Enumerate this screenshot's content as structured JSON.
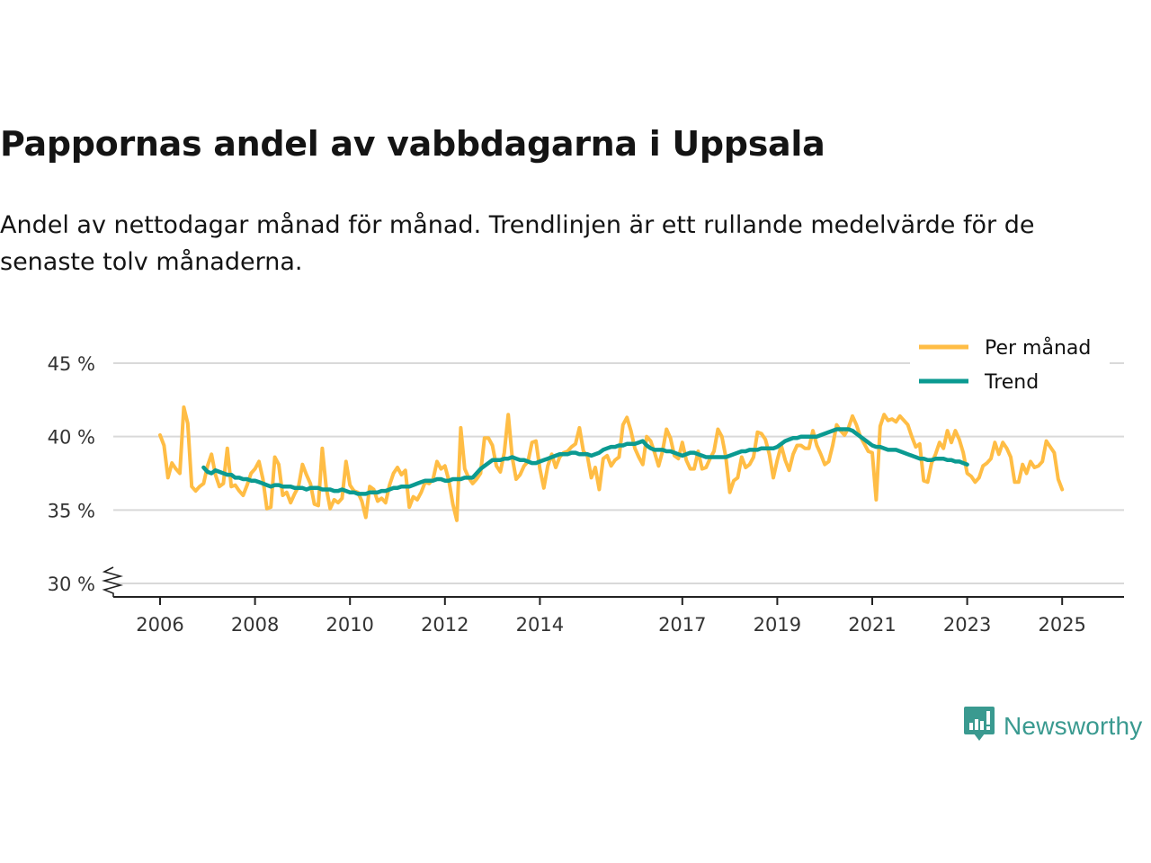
{
  "header": {
    "title": "Pappornas andel av vabbdagarna i Uppsala",
    "subtitle": "Andel av nettodagar månad för månad. Trendlinjen är ett rullande medelvärde för de senaste tolv månaderna."
  },
  "brand": {
    "name": "Newsworthy",
    "icon": "bar-chart-speech-bubble-icon",
    "color": "#3a9a90"
  },
  "chart_data": {
    "type": "line",
    "title": "Pappornas andel av vabbdagarna i Uppsala",
    "subtitle": "Andel av nettodagar månad för månad. Trendlinjen är ett rullande medelvärde för de senaste tolv månaderna.",
    "xlabel": "",
    "ylabel": "",
    "ylim": [
      30,
      45
    ],
    "y_axis_break": true,
    "yticks": [
      30,
      35,
      40,
      45
    ],
    "ytick_labels": [
      "30 %",
      "35 %",
      "40 %",
      "45 %"
    ],
    "xticks": [
      2006,
      2008,
      2010,
      2012,
      2014,
      2017,
      2019,
      2021,
      2023,
      2025
    ],
    "xtick_labels": [
      "2006",
      "2008",
      "2010",
      "2012",
      "2014",
      "2017",
      "2019",
      "2021",
      "2023",
      "2025"
    ],
    "x_start": "2006-01",
    "x_unit": "month",
    "grid": true,
    "legend_position": "top-right",
    "series": [
      {
        "name": "Per månad",
        "color": "#ffbd45",
        "start": "2006-01",
        "values": [
          40.1,
          39.4,
          37.2,
          38.2,
          37.8,
          37.5,
          42.0,
          40.9,
          36.6,
          36.3,
          36.6,
          36.8,
          38.0,
          38.8,
          37.4,
          36.6,
          36.8,
          39.2,
          36.6,
          36.7,
          36.3,
          36.0,
          36.7,
          37.5,
          37.8,
          38.3,
          37.1,
          35.1,
          35.2,
          38.6,
          38.1,
          36.0,
          36.2,
          35.5,
          36.1,
          36.6,
          38.1,
          37.4,
          36.8,
          35.4,
          35.3,
          39.2,
          36.5,
          35.1,
          35.7,
          35.5,
          35.8,
          38.3,
          36.7,
          36.3,
          36.2,
          35.6,
          34.5,
          36.6,
          36.4,
          35.6,
          35.8,
          35.5,
          36.7,
          37.5,
          37.9,
          37.4,
          37.7,
          35.2,
          35.9,
          35.7,
          36.2,
          36.9,
          36.8,
          37.1,
          38.3,
          37.8,
          38.0,
          37.0,
          35.4,
          34.3,
          40.6,
          37.8,
          37.2,
          36.8,
          37.1,
          37.5,
          39.9,
          39.9,
          39.4,
          38.0,
          37.6,
          38.9,
          41.5,
          38.6,
          37.1,
          37.4,
          38.0,
          38.3,
          39.6,
          39.7,
          37.8,
          36.5,
          38.0,
          38.8,
          37.9,
          38.6,
          38.9,
          39.0,
          39.3,
          39.5,
          40.6,
          39.0,
          38.7,
          37.2,
          37.9,
          36.4,
          38.5,
          38.7,
          38.0,
          38.4,
          38.6,
          40.8,
          41.3,
          40.4,
          39.2,
          38.6,
          38.1,
          40.0,
          39.7,
          38.9,
          38.0,
          39.0,
          40.5,
          39.9,
          38.7,
          38.5,
          39.6,
          38.4,
          37.8,
          37.8,
          39.0,
          37.8,
          37.9,
          38.5,
          39.0,
          40.5,
          40.0,
          38.6,
          36.2,
          37.0,
          37.2,
          38.6,
          37.9,
          38.1,
          38.6,
          40.3,
          40.2,
          39.8,
          38.8,
          37.2,
          38.4,
          39.4,
          38.4,
          37.7,
          38.8,
          39.4,
          39.4,
          39.2,
          39.2,
          40.4,
          39.4,
          38.8,
          38.1,
          38.3,
          39.4,
          40.8,
          40.4,
          40.1,
          40.6,
          41.4,
          40.8,
          40.0,
          39.5,
          39.0,
          38.9,
          35.7,
          40.7,
          41.5,
          41.1,
          41.2,
          41.0,
          41.4,
          41.1,
          40.8,
          40.0,
          39.3,
          39.5,
          37.0,
          36.9,
          38.2,
          38.8,
          39.6,
          39.2,
          40.4,
          39.6,
          40.4,
          39.8,
          38.9,
          37.5,
          37.3,
          36.9,
          37.2,
          38.0,
          38.2,
          38.5,
          39.6,
          38.8,
          39.6,
          39.2,
          38.6,
          36.9,
          36.9,
          38.1,
          37.5,
          38.3,
          37.9,
          38.0,
          38.3,
          39.7,
          39.3,
          38.9,
          37.1,
          36.4
        ]
      },
      {
        "name": "Trend",
        "color": "#0b9a91",
        "start": "2006-12",
        "values": [
          37.9,
          37.6,
          37.5,
          37.7,
          37.6,
          37.5,
          37.4,
          37.4,
          37.2,
          37.2,
          37.1,
          37.1,
          37.0,
          37.0,
          36.9,
          36.8,
          36.7,
          36.6,
          36.7,
          36.7,
          36.6,
          36.6,
          36.6,
          36.5,
          36.5,
          36.5,
          36.4,
          36.5,
          36.5,
          36.5,
          36.4,
          36.4,
          36.4,
          36.3,
          36.3,
          36.4,
          36.3,
          36.2,
          36.2,
          36.1,
          36.1,
          36.1,
          36.2,
          36.2,
          36.2,
          36.3,
          36.3,
          36.4,
          36.5,
          36.5,
          36.6,
          36.6,
          36.6,
          36.7,
          36.8,
          36.9,
          37.0,
          37.0,
          37.0,
          37.1,
          37.1,
          37.0,
          37.0,
          37.1,
          37.1,
          37.1,
          37.2,
          37.2,
          37.2,
          37.5,
          37.8,
          38.0,
          38.2,
          38.4,
          38.4,
          38.4,
          38.5,
          38.5,
          38.6,
          38.5,
          38.4,
          38.4,
          38.3,
          38.2,
          38.2,
          38.3,
          38.4,
          38.5,
          38.6,
          38.7,
          38.8,
          38.8,
          38.8,
          38.9,
          38.9,
          38.8,
          38.8,
          38.8,
          38.7,
          38.8,
          38.9,
          39.1,
          39.2,
          39.3,
          39.3,
          39.4,
          39.4,
          39.5,
          39.5,
          39.5,
          39.6,
          39.7,
          39.4,
          39.2,
          39.1,
          39.1,
          39.1,
          39.0,
          39.0,
          38.9,
          38.8,
          38.7,
          38.8,
          38.9,
          38.9,
          38.8,
          38.7,
          38.6,
          38.6,
          38.6,
          38.6,
          38.6,
          38.6,
          38.7,
          38.8,
          38.9,
          39.0,
          39.0,
          39.1,
          39.1,
          39.1,
          39.2,
          39.2,
          39.2,
          39.2,
          39.3,
          39.5,
          39.7,
          39.8,
          39.9,
          39.9,
          40.0,
          40.0,
          40.0,
          40.0,
          40.0,
          40.1,
          40.2,
          40.3,
          40.4,
          40.5,
          40.5,
          40.5,
          40.5,
          40.4,
          40.2,
          40.0,
          39.8,
          39.6,
          39.4,
          39.3,
          39.3,
          39.2,
          39.1,
          39.1,
          39.1,
          39.0,
          38.9,
          38.8,
          38.7,
          38.6,
          38.5,
          38.5,
          38.4,
          38.4,
          38.5,
          38.5,
          38.5,
          38.4,
          38.4,
          38.3,
          38.3,
          38.2,
          38.1
        ]
      }
    ]
  }
}
